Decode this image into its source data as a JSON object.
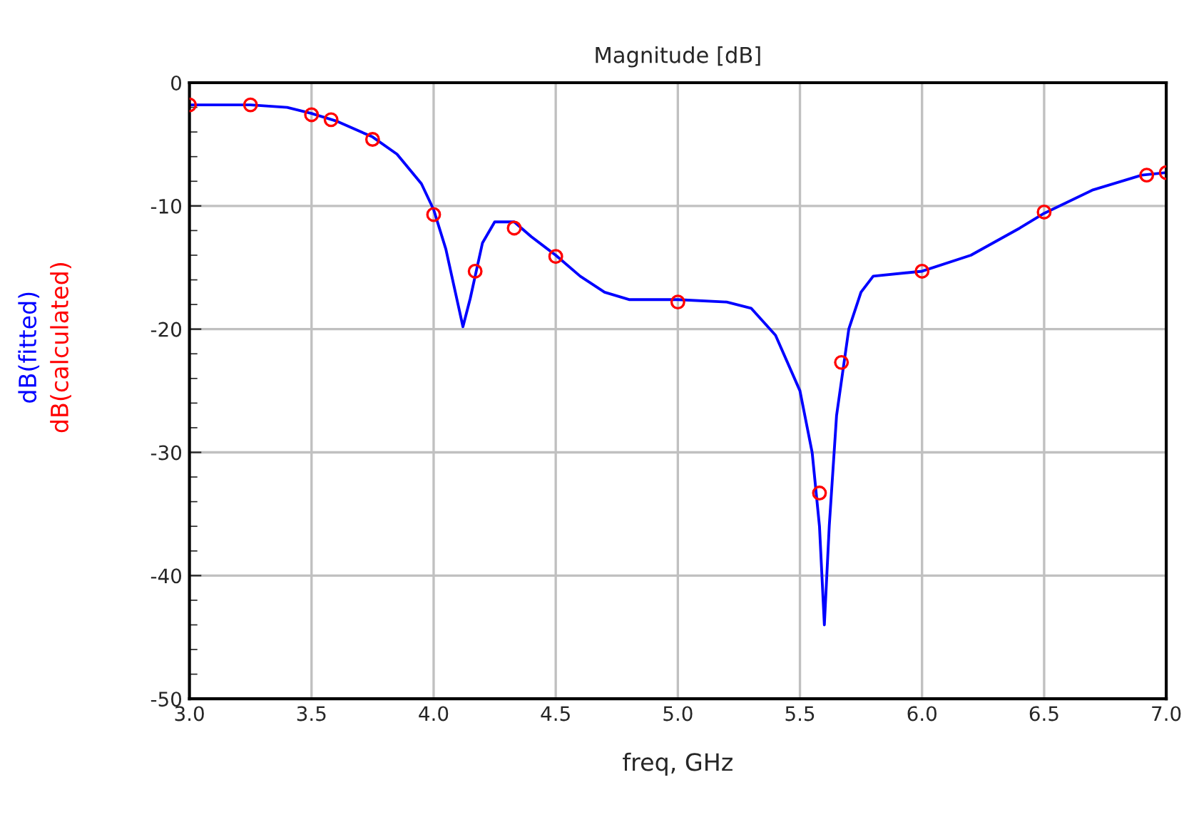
{
  "chart_data": {
    "type": "line",
    "title": "Magnitude [dB]",
    "xlabel": "freq, GHz",
    "xlim": [
      3.0,
      7.0
    ],
    "ylim": [
      -50,
      0
    ],
    "xticks": [
      {
        "value": 3.0,
        "label": "3.0"
      },
      3.5,
      {
        "value": 4.0,
        "label": "4.0"
      },
      4.5,
      {
        "value": 5.0,
        "label": "5.0"
      },
      5.5,
      {
        "value": 6.0,
        "label": "6.0"
      },
      6.5,
      {
        "value": 7.0,
        "label": "7.0"
      }
    ],
    "yticks": [
      -50,
      -40,
      -30,
      -20,
      -10,
      0
    ],
    "grid": true,
    "series": [
      {
        "name": "dB(fitted)",
        "color": "#0000ff",
        "marker": "none",
        "line_style": "solid",
        "x": [
          3.0,
          3.25,
          3.4,
          3.5,
          3.6,
          3.75,
          3.85,
          3.95,
          4.0,
          4.05,
          4.1,
          4.12,
          4.15,
          4.2,
          4.25,
          4.33,
          4.4,
          4.5,
          4.6,
          4.7,
          4.8,
          5.0,
          5.2,
          5.3,
          5.4,
          5.5,
          5.55,
          5.58,
          5.6,
          5.62,
          5.65,
          5.7,
          5.75,
          5.8,
          6.0,
          6.2,
          6.4,
          6.5,
          6.7,
          6.9,
          7.0
        ],
        "values": [
          -1.8,
          -1.8,
          -2.0,
          -2.5,
          -3.1,
          -4.4,
          -5.8,
          -8.2,
          -10.3,
          -13.5,
          -18,
          -19.8,
          -17.5,
          -13,
          -11.3,
          -11.3,
          -12.5,
          -14.0,
          -15.7,
          -17,
          -17.6,
          -17.6,
          -17.8,
          -18.3,
          -20.5,
          -25,
          -30,
          -36,
          -44,
          -36,
          -27,
          -20,
          -17,
          -15.7,
          -15.3,
          -14,
          -11.8,
          -10.6,
          -8.7,
          -7.5,
          -7.3
        ]
      },
      {
        "name": "dB(calculated)",
        "type": "scatter",
        "color": "#ff0000",
        "marker": "circle",
        "x": [
          3.0,
          3.25,
          3.5,
          3.58,
          3.75,
          4.0,
          4.17,
          4.33,
          4.5,
          5.0,
          5.58,
          5.67,
          6.0,
          6.5,
          6.92,
          7.0
        ],
        "values": [
          -1.8,
          -1.8,
          -2.6,
          -3.0,
          -4.6,
          -10.7,
          -15.3,
          -11.8,
          -14.1,
          -17.8,
          -33.3,
          -22.7,
          -15.3,
          -10.5,
          -7.5,
          -7.3
        ]
      }
    ]
  }
}
